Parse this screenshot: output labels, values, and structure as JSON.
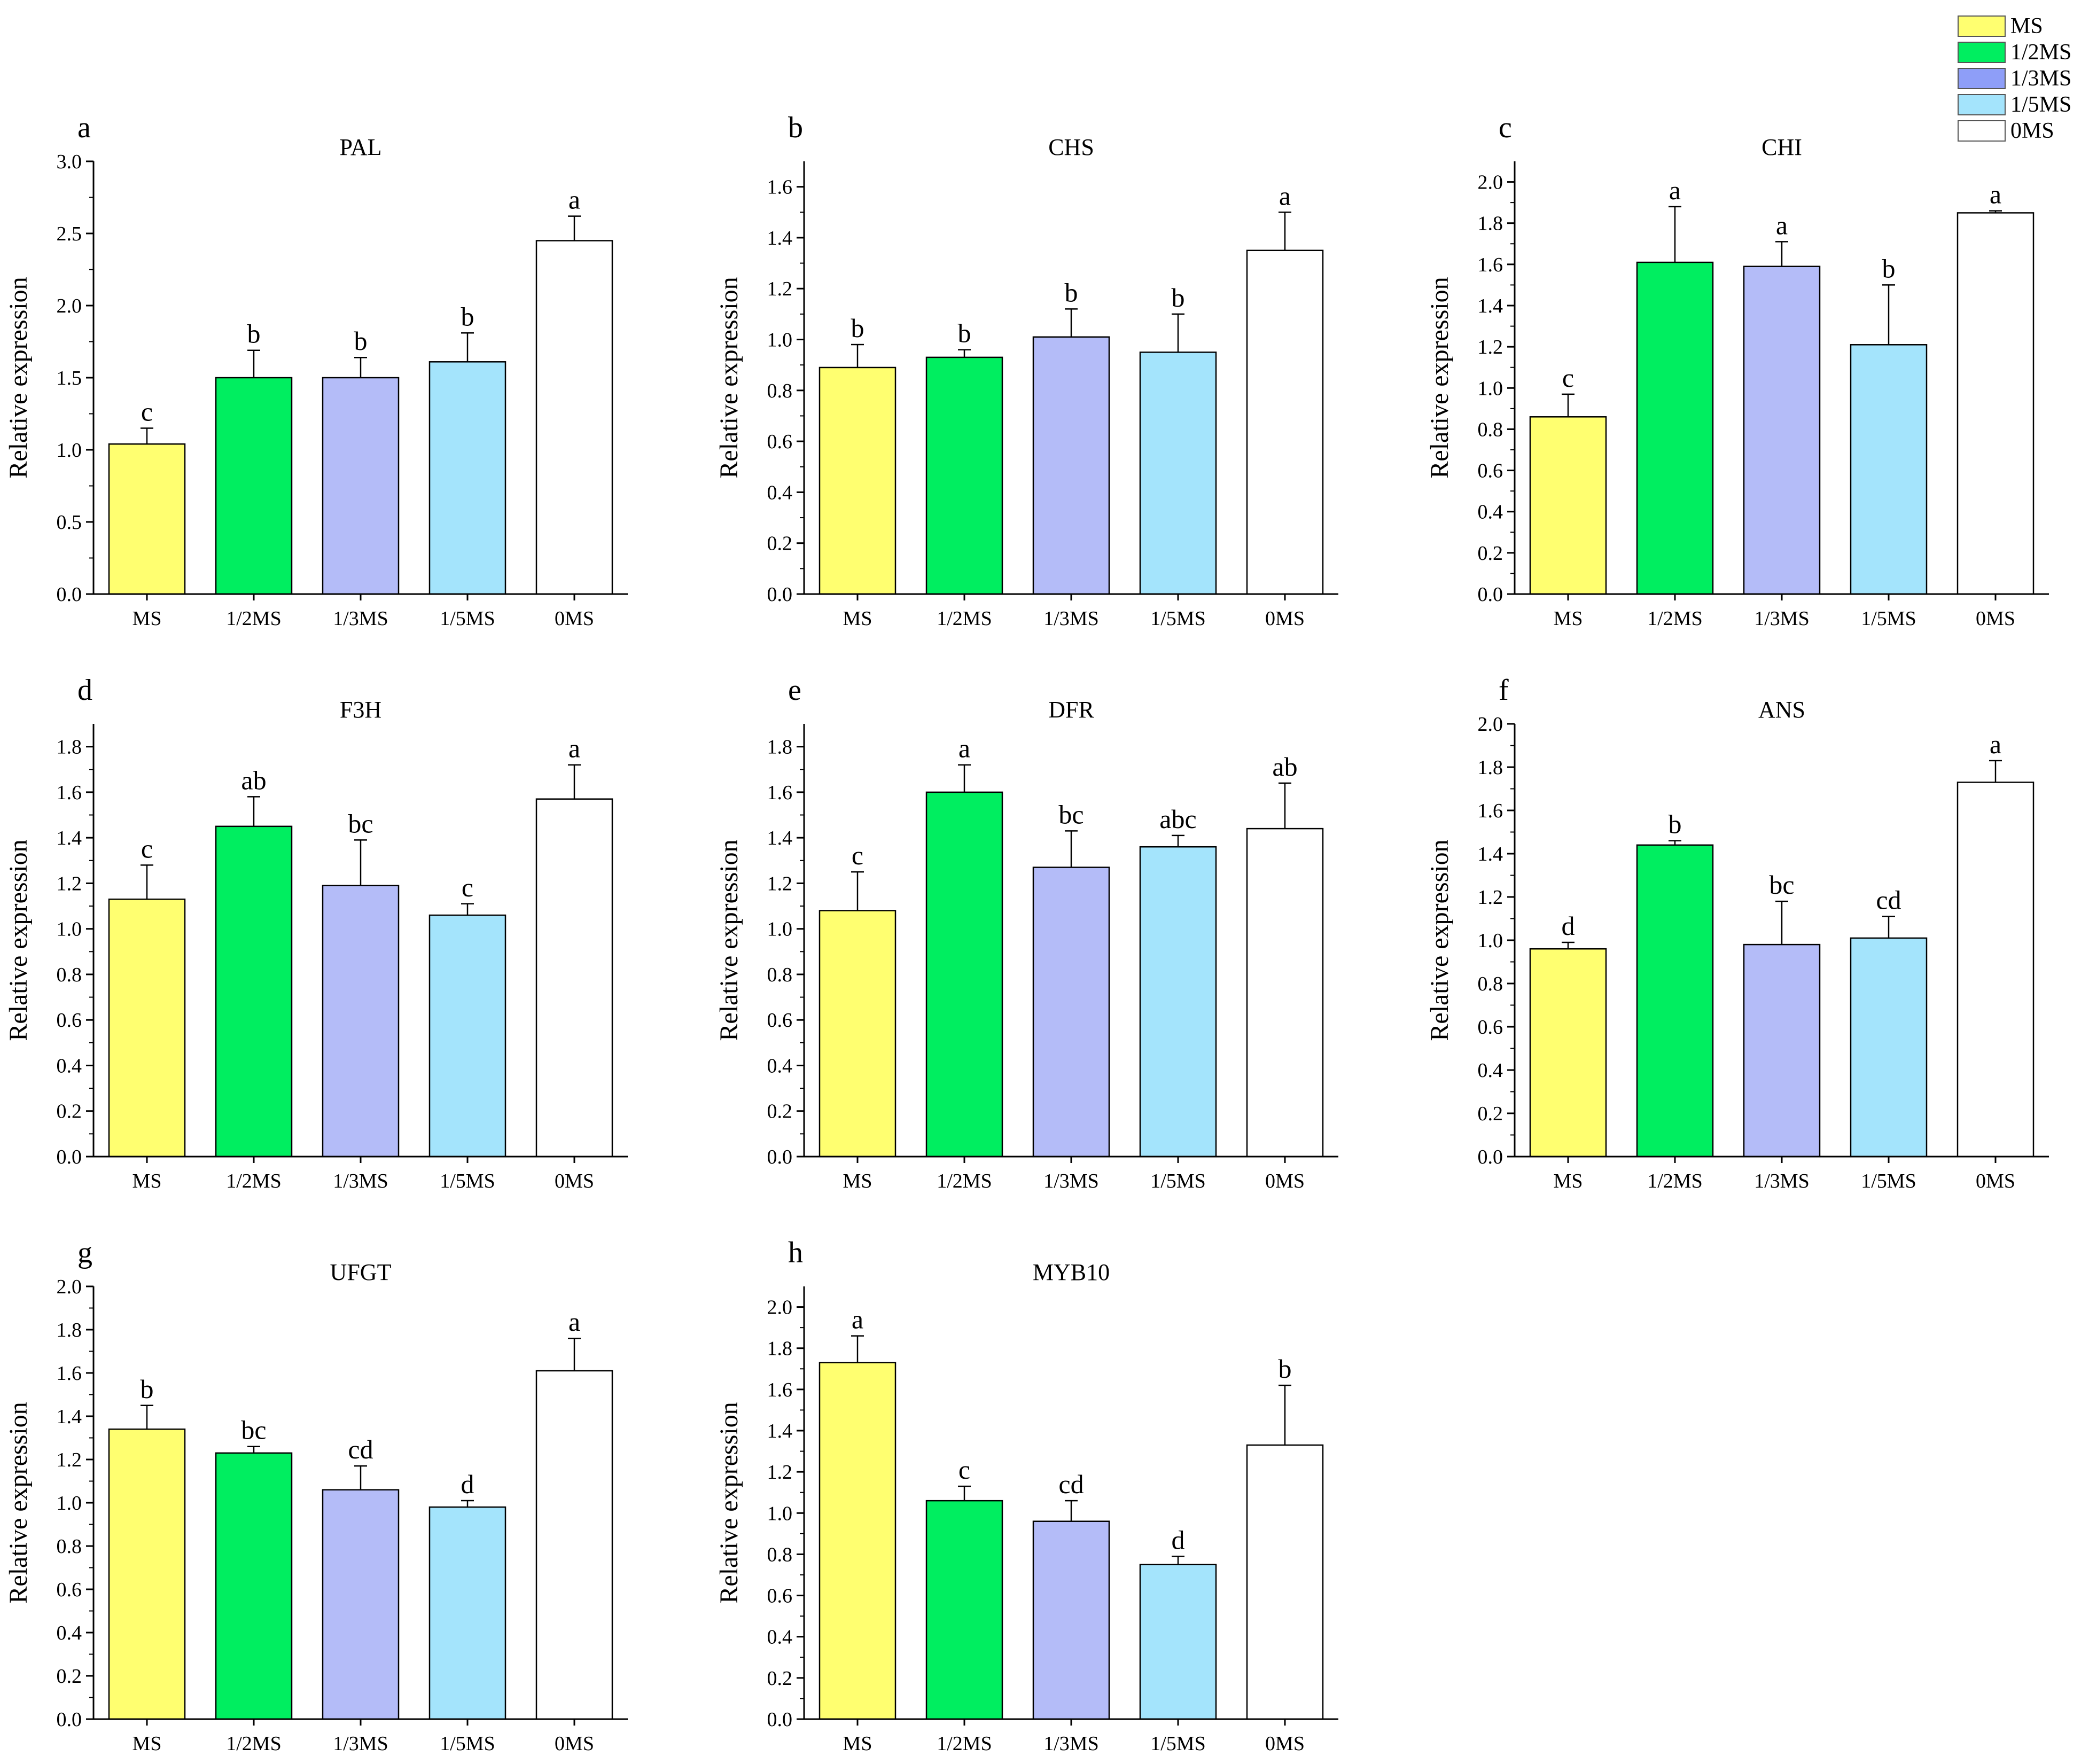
{
  "legend": {
    "items": [
      {
        "label": "MS",
        "color": "#FFFF70"
      },
      {
        "label": "1/2MS",
        "color": "#00EE60"
      },
      {
        "label": "1/3MS",
        "color": "#8E9EF8"
      },
      {
        "label": "1/5MS",
        "color": "#A4E4FC"
      },
      {
        "label": "0MS",
        "color": "#FFFFFF"
      }
    ],
    "placement": "top-right"
  },
  "chart_data": [
    {
      "type": "bar",
      "panel": "a",
      "title": "PAL",
      "categories": [
        "MS",
        "1/2MS",
        "1/3MS",
        "1/5MS",
        "0MS"
      ],
      "values": [
        1.04,
        1.5,
        1.5,
        1.61,
        2.45
      ],
      "errors": [
        0.11,
        0.19,
        0.14,
        0.2,
        0.17
      ],
      "significance": [
        "c",
        "b",
        "b",
        "b",
        "a"
      ],
      "bar_colors": [
        "#FFFF70",
        "#00EE60",
        "#B4BCF8",
        "#A4E4FC",
        "#FFFFFF"
      ],
      "xlabel": "",
      "ylabel": "Relative expression",
      "ylim": [
        0,
        3.0
      ],
      "yticks": [
        "0.0",
        "0.5",
        "1.0",
        "1.5",
        "2.0",
        "2.5",
        "3.0"
      ],
      "ytick_values": [
        0,
        0.5,
        1.0,
        1.5,
        2.0,
        2.5,
        3.0
      ]
    },
    {
      "type": "bar",
      "panel": "b",
      "title": "CHS",
      "categories": [
        "MS",
        "1/2MS",
        "1/3MS",
        "1/5MS",
        "0MS"
      ],
      "values": [
        0.89,
        0.93,
        1.01,
        0.95,
        1.35
      ],
      "errors": [
        0.09,
        0.03,
        0.11,
        0.15,
        0.15
      ],
      "significance": [
        "b",
        "b",
        "b",
        "b",
        "a"
      ],
      "bar_colors": [
        "#FFFF70",
        "#00EE60",
        "#B4BCF8",
        "#A4E4FC",
        "#FFFFFF"
      ],
      "xlabel": "",
      "ylabel": "Relative expression",
      "ylim": [
        0,
        1.7
      ],
      "yticks": [
        "0.0",
        "0.2",
        "0.4",
        "0.6",
        "0.8",
        "1.0",
        "1.2",
        "1.4",
        "1.6"
      ],
      "ytick_values": [
        0,
        0.2,
        0.4,
        0.6,
        0.8,
        1.0,
        1.2,
        1.4,
        1.6
      ]
    },
    {
      "type": "bar",
      "panel": "c",
      "title": "CHI",
      "categories": [
        "MS",
        "1/2MS",
        "1/3MS",
        "1/5MS",
        "0MS"
      ],
      "values": [
        0.86,
        1.61,
        1.59,
        1.21,
        1.85
      ],
      "errors": [
        0.11,
        0.27,
        0.12,
        0.29,
        0.01
      ],
      "significance": [
        "c",
        "a",
        "a",
        "b",
        "a"
      ],
      "bar_colors": [
        "#FFFF70",
        "#00EE60",
        "#B4BCF8",
        "#A4E4FC",
        "#FFFFFF"
      ],
      "xlabel": "",
      "ylabel": "Relative expression",
      "ylim": [
        0,
        2.1
      ],
      "yticks": [
        "0.0",
        "0.2",
        "0.4",
        "0.6",
        "0.8",
        "1.0",
        "1.2",
        "1.4",
        "1.6",
        "1.8",
        "2.0"
      ],
      "ytick_values": [
        0,
        0.2,
        0.4,
        0.6,
        0.8,
        1.0,
        1.2,
        1.4,
        1.6,
        1.8,
        2.0
      ]
    },
    {
      "type": "bar",
      "panel": "d",
      "title": "F3H",
      "categories": [
        "MS",
        "1/2MS",
        "1/3MS",
        "1/5MS",
        "0MS"
      ],
      "values": [
        1.13,
        1.45,
        1.19,
        1.06,
        1.57
      ],
      "errors": [
        0.15,
        0.13,
        0.2,
        0.05,
        0.15
      ],
      "significance": [
        "c",
        "ab",
        "bc",
        "c",
        "a"
      ],
      "bar_colors": [
        "#FFFF70",
        "#00EE60",
        "#B4BCF8",
        "#A4E4FC",
        "#FFFFFF"
      ],
      "xlabel": "",
      "ylabel": "Relative expression",
      "ylim": [
        0,
        1.9
      ],
      "yticks": [
        "0.0",
        "0.2",
        "0.4",
        "0.6",
        "0.8",
        "1.0",
        "1.2",
        "1.4",
        "1.6",
        "1.8"
      ],
      "ytick_values": [
        0,
        0.2,
        0.4,
        0.6,
        0.8,
        1.0,
        1.2,
        1.4,
        1.6,
        1.8
      ]
    },
    {
      "type": "bar",
      "panel": "e",
      "title": "DFR",
      "categories": [
        "MS",
        "1/2MS",
        "1/3MS",
        "1/5MS",
        "0MS"
      ],
      "values": [
        1.08,
        1.6,
        1.27,
        1.36,
        1.44
      ],
      "errors": [
        0.17,
        0.12,
        0.16,
        0.05,
        0.2
      ],
      "significance": [
        "c",
        "a",
        "bc",
        "abc",
        "ab"
      ],
      "bar_colors": [
        "#FFFF70",
        "#00EE60",
        "#B4BCF8",
        "#A4E4FC",
        "#FFFFFF"
      ],
      "xlabel": "",
      "ylabel": "Relative expression",
      "ylim": [
        0,
        1.9
      ],
      "yticks": [
        "0.0",
        "0.2",
        "0.4",
        "0.6",
        "0.8",
        "1.0",
        "1.2",
        "1.4",
        "1.6",
        "1.8"
      ],
      "ytick_values": [
        0,
        0.2,
        0.4,
        0.6,
        0.8,
        1.0,
        1.2,
        1.4,
        1.6,
        1.8
      ]
    },
    {
      "type": "bar",
      "panel": "f",
      "title": "ANS",
      "categories": [
        "MS",
        "1/2MS",
        "1/3MS",
        "1/5MS",
        "0MS"
      ],
      "values": [
        0.96,
        1.44,
        0.98,
        1.01,
        1.73
      ],
      "errors": [
        0.03,
        0.02,
        0.2,
        0.1,
        0.1
      ],
      "significance": [
        "d",
        "b",
        "bc",
        "cd",
        "a"
      ],
      "bar_colors": [
        "#FFFF70",
        "#00EE60",
        "#B4BCF8",
        "#A4E4FC",
        "#FFFFFF"
      ],
      "xlabel": "",
      "ylabel": "Relative expression",
      "ylim": [
        0,
        2.0
      ],
      "yticks": [
        "0.0",
        "0.2",
        "0.4",
        "0.6",
        "0.8",
        "1.0",
        "1.2",
        "1.4",
        "1.6",
        "1.8",
        "2.0"
      ],
      "ytick_values": [
        0,
        0.2,
        0.4,
        0.6,
        0.8,
        1.0,
        1.2,
        1.4,
        1.6,
        1.8,
        2.0
      ]
    },
    {
      "type": "bar",
      "panel": "g",
      "title": "UFGT",
      "categories": [
        "MS",
        "1/2MS",
        "1/3MS",
        "1/5MS",
        "0MS"
      ],
      "values": [
        1.34,
        1.23,
        1.06,
        0.98,
        1.61
      ],
      "errors": [
        0.11,
        0.03,
        0.11,
        0.03,
        0.15
      ],
      "significance": [
        "b",
        "bc",
        "cd",
        "d",
        "a"
      ],
      "bar_colors": [
        "#FFFF70",
        "#00EE60",
        "#B4BCF8",
        "#A4E4FC",
        "#FFFFFF"
      ],
      "xlabel": "",
      "ylabel": "Relative expression",
      "ylim": [
        0,
        2.0
      ],
      "yticks": [
        "0.0",
        "0.2",
        "0.4",
        "0.6",
        "0.8",
        "1.0",
        "1.2",
        "1.4",
        "1.6",
        "1.8",
        "2.0"
      ],
      "ytick_values": [
        0,
        0.2,
        0.4,
        0.6,
        0.8,
        1.0,
        1.2,
        1.4,
        1.6,
        1.8,
        2.0
      ]
    },
    {
      "type": "bar",
      "panel": "h",
      "title": "MYB10",
      "categories": [
        "MS",
        "1/2MS",
        "1/3MS",
        "1/5MS",
        "0MS"
      ],
      "values": [
        1.73,
        1.06,
        0.96,
        0.75,
        1.33
      ],
      "errors": [
        0.13,
        0.07,
        0.1,
        0.04,
        0.29
      ],
      "significance": [
        "a",
        "c",
        "cd",
        "d",
        "b"
      ],
      "bar_colors": [
        "#FFFF70",
        "#00EE60",
        "#B4BCF8",
        "#A4E4FC",
        "#FFFFFF"
      ],
      "xlabel": "",
      "ylabel": "Relative expression",
      "ylim": [
        0,
        2.1
      ],
      "yticks": [
        "0.0",
        "0.2",
        "0.4",
        "0.6",
        "0.8",
        "1.0",
        "1.2",
        "1.4",
        "1.6",
        "1.8",
        "2.0"
      ],
      "ytick_values": [
        0,
        0.2,
        0.4,
        0.6,
        0.8,
        1.0,
        1.2,
        1.4,
        1.6,
        1.8,
        2.0
      ]
    }
  ]
}
